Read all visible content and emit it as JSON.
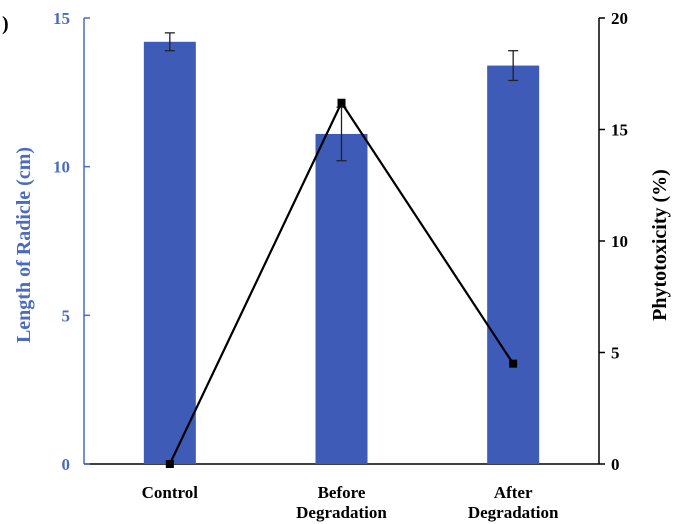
{
  "panel_label": ")",
  "chart_data": {
    "type": "bar",
    "categories": [
      [
        "Control"
      ],
      [
        "Before",
        "Degradation"
      ],
      [
        "After",
        "Degradation"
      ]
    ],
    "series": [
      {
        "type": "bar",
        "axis": "left",
        "values": [
          14.2,
          11.1,
          13.4
        ],
        "errors": [
          0.3,
          0.9,
          0.5
        ],
        "color": "#3e5bb8"
      },
      {
        "type": "line",
        "axis": "right",
        "values": [
          0,
          16.2,
          4.5
        ],
        "color": "#000000"
      }
    ],
    "ylabel": "Length of Radicle (cm)",
    "ylabel_right": "Phytotoxicity (%)",
    "ylim": [
      0,
      15
    ],
    "ylim_right": [
      0,
      20
    ],
    "yticks": [
      "0",
      "5",
      "10",
      "15"
    ],
    "yticks_right": [
      "0",
      "5",
      "10",
      "15",
      "20"
    ],
    "left_axis_color": "#4a6bbf",
    "grid": false
  }
}
